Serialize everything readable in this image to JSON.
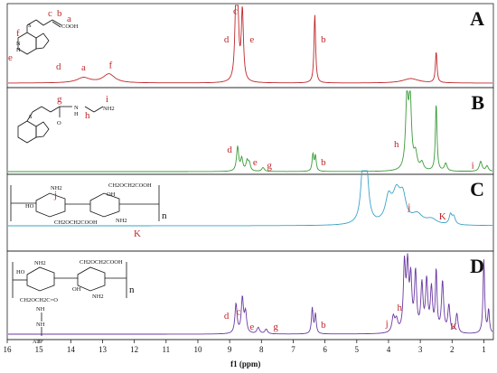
{
  "chart_data": {
    "type": "line",
    "title": "",
    "xlabel": "f1 (ppm)",
    "ylabel": "",
    "xlim": [
      16,
      0.7
    ],
    "x_reversed": true,
    "x_ticks": [
      16,
      15,
      14,
      13,
      12,
      11,
      10,
      9,
      8,
      7,
      6,
      5,
      4,
      3,
      2,
      1
    ],
    "grid": false,
    "legend": "none",
    "panels": [
      {
        "letter": "A",
        "color": "#c0282c",
        "baseline_ppm": [
          0.7,
          16
        ],
        "peaks": [
          {
            "ppm": 13.6,
            "height": 0.07,
            "width": 0.25
          },
          {
            "ppm": 12.8,
            "height": 0.12,
            "width": 0.22
          },
          {
            "ppm": 8.8,
            "height": 1.0,
            "width": 0.04
          },
          {
            "ppm": 8.75,
            "height": 0.9,
            "width": 0.04
          },
          {
            "ppm": 8.6,
            "height": 0.95,
            "width": 0.04
          },
          {
            "ppm": 6.32,
            "height": 0.93,
            "width": 0.03
          },
          {
            "ppm": 3.3,
            "height": 0.06,
            "width": 0.3
          },
          {
            "ppm": 2.5,
            "height": 0.42,
            "width": 0.03
          }
        ],
        "labels": [
          {
            "text": "a",
            "ppm": 13.6,
            "level": 0.17
          },
          {
            "text": "f",
            "ppm": 12.75,
            "level": 0.2
          },
          {
            "text": "c",
            "ppm": 8.82,
            "level": 0.93
          },
          {
            "text": "d",
            "ppm": 9.1,
            "level": 0.55
          },
          {
            "text": "e",
            "ppm": 8.3,
            "level": 0.55
          },
          {
            "text": "b",
            "ppm": 6.05,
            "level": 0.55
          }
        ]
      },
      {
        "letter": "B",
        "color": "#3c9a3a",
        "peaks": [
          {
            "ppm": 8.75,
            "height": 0.32,
            "width": 0.04
          },
          {
            "ppm": 8.62,
            "height": 0.16,
            "width": 0.04
          },
          {
            "ppm": 8.45,
            "height": 0.13,
            "width": 0.04
          },
          {
            "ppm": 8.38,
            "height": 0.1,
            "width": 0.04
          },
          {
            "ppm": 7.95,
            "height": 0.05,
            "width": 0.05
          },
          {
            "ppm": 6.38,
            "height": 0.22,
            "width": 0.03
          },
          {
            "ppm": 6.3,
            "height": 0.2,
            "width": 0.03
          },
          {
            "ppm": 3.42,
            "height": 0.92,
            "width": 0.05
          },
          {
            "ppm": 3.32,
            "height": 0.9,
            "width": 0.05
          },
          {
            "ppm": 3.15,
            "height": 0.2,
            "width": 0.06
          },
          {
            "ppm": 2.95,
            "height": 0.1,
            "width": 0.06
          },
          {
            "ppm": 2.5,
            "height": 0.88,
            "width": 0.03
          },
          {
            "ppm": 2.2,
            "height": 0.1,
            "width": 0.05
          },
          {
            "ppm": 1.1,
            "height": 0.13,
            "width": 0.05
          },
          {
            "ppm": 0.9,
            "height": 0.07,
            "width": 0.05
          }
        ],
        "labels": [
          {
            "text": "d",
            "ppm": 9.0,
            "level": 0.25
          },
          {
            "text": "e",
            "ppm": 8.2,
            "level": 0.08
          },
          {
            "text": "g",
            "ppm": 7.75,
            "level": 0.04
          },
          {
            "text": "b",
            "ppm": 6.05,
            "level": 0.08
          },
          {
            "text": "h",
            "ppm": 3.75,
            "level": 0.32
          },
          {
            "text": "i",
            "ppm": 1.35,
            "level": 0.04
          }
        ]
      },
      {
        "letter": "C",
        "color": "#3aa3c6",
        "peaks": [
          {
            "ppm": 4.8,
            "height": 1.0,
            "width": 0.08
          },
          {
            "ppm": 4.7,
            "height": 0.95,
            "width": 0.08
          },
          {
            "ppm": 4.0,
            "height": 0.45,
            "width": 0.12
          },
          {
            "ppm": 3.75,
            "height": 0.55,
            "width": 0.15
          },
          {
            "ppm": 3.55,
            "height": 0.45,
            "width": 0.12
          },
          {
            "ppm": 3.1,
            "height": 0.18,
            "width": 0.2
          },
          {
            "ppm": 2.65,
            "height": 0.1,
            "width": 0.2
          },
          {
            "ppm": 2.05,
            "height": 0.18,
            "width": 0.05
          },
          {
            "ppm": 1.95,
            "height": 0.15,
            "width": 0.06
          }
        ],
        "labels": [
          {
            "text": "j",
            "ppm": 3.35,
            "level": 0.3
          },
          {
            "text": "K",
            "ppm": 2.3,
            "level": 0.12
          }
        ]
      },
      {
        "letter": "D",
        "color": "#6b3aa3",
        "peaks": [
          {
            "ppm": 8.8,
            "height": 0.38,
            "width": 0.04
          },
          {
            "ppm": 8.6,
            "height": 0.45,
            "width": 0.04
          },
          {
            "ppm": 8.5,
            "height": 0.26,
            "width": 0.04
          },
          {
            "ppm": 8.1,
            "height": 0.08,
            "width": 0.05
          },
          {
            "ppm": 7.85,
            "height": 0.06,
            "width": 0.05
          },
          {
            "ppm": 6.4,
            "height": 0.33,
            "width": 0.03
          },
          {
            "ppm": 6.3,
            "height": 0.25,
            "width": 0.03
          },
          {
            "ppm": 3.85,
            "height": 0.2,
            "width": 0.05
          },
          {
            "ppm": 3.75,
            "height": 0.15,
            "width": 0.05
          },
          {
            "ppm": 3.5,
            "height": 0.85,
            "width": 0.04
          },
          {
            "ppm": 3.4,
            "height": 0.8,
            "width": 0.04
          },
          {
            "ppm": 3.3,
            "height": 0.65,
            "width": 0.04
          },
          {
            "ppm": 3.15,
            "height": 0.75,
            "width": 0.04
          },
          {
            "ppm": 2.95,
            "height": 0.6,
            "width": 0.04
          },
          {
            "ppm": 2.8,
            "height": 0.65,
            "width": 0.04
          },
          {
            "ppm": 2.65,
            "height": 0.55,
            "width": 0.04
          },
          {
            "ppm": 2.5,
            "height": 0.78,
            "width": 0.03
          },
          {
            "ppm": 2.3,
            "height": 0.65,
            "width": 0.04
          },
          {
            "ppm": 2.1,
            "height": 0.35,
            "width": 0.04
          },
          {
            "ppm": 1.85,
            "height": 0.25,
            "width": 0.04
          },
          {
            "ppm": 1.0,
            "height": 0.95,
            "width": 0.03
          },
          {
            "ppm": 0.85,
            "height": 0.3,
            "width": 0.03
          }
        ],
        "labels": [
          {
            "text": "d",
            "ppm": 9.1,
            "level": 0.2
          },
          {
            "text": "c",
            "ppm": 8.72,
            "level": 0.25
          },
          {
            "text": "e",
            "ppm": 8.3,
            "level": 0.06
          },
          {
            "text": "g",
            "ppm": 7.55,
            "level": 0.06
          },
          {
            "text": "b",
            "ppm": 6.05,
            "level": 0.08
          },
          {
            "text": "j",
            "ppm": 4.05,
            "level": 0.1
          },
          {
            "text": "h",
            "ppm": 3.65,
            "level": 0.3
          },
          {
            "text": "K",
            "ppm": 1.95,
            "level": 0.06
          }
        ]
      }
    ],
    "structure_labels": {
      "A": [
        "c",
        "b",
        "a",
        "COOH",
        "S",
        "f",
        "N",
        "H",
        "N",
        "e",
        "N",
        "N",
        "d"
      ],
      "B": [
        "g",
        "O",
        "N",
        "H",
        "h",
        "i",
        "NH2",
        "S",
        "N",
        "H",
        "N",
        "N",
        "N"
      ],
      "C": [
        "NH2",
        "j",
        "CH2OCH2COOH",
        "OH",
        "O",
        "HO",
        "O",
        "O",
        "O",
        "CH2OCH2COOH",
        "NH2",
        "K",
        "n"
      ],
      "D": [
        "NH2",
        "CH2OCH2COOH",
        "HO",
        "OH",
        "O",
        "CH2OCH2C=O",
        "NH2",
        "NH",
        "n",
        "NH",
        "ATP"
      ]
    }
  }
}
